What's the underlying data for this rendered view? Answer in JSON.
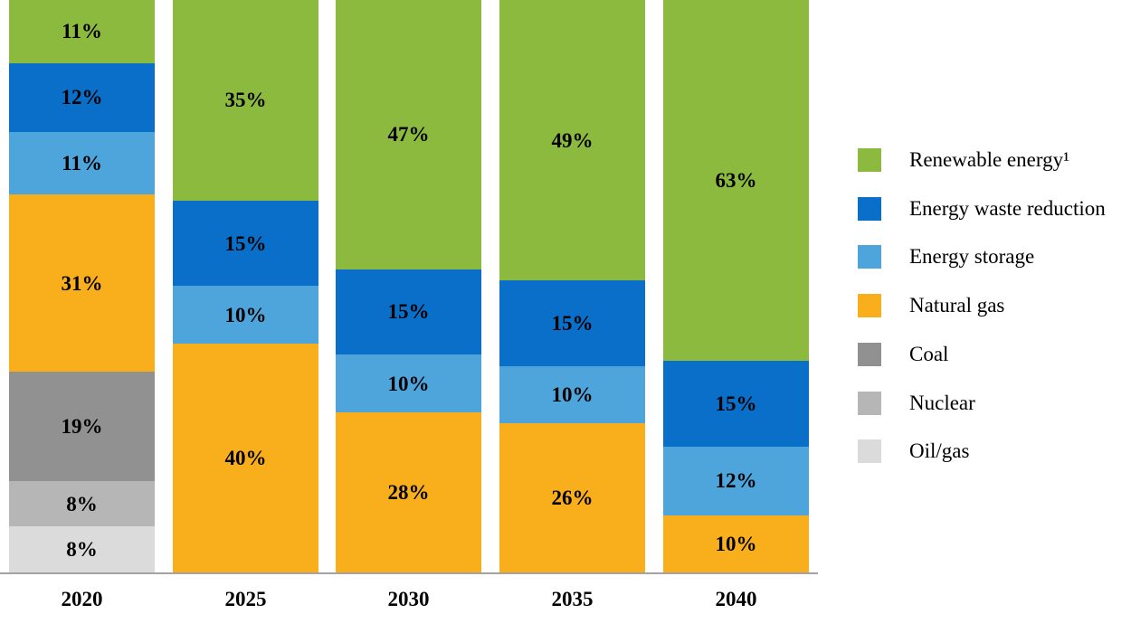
{
  "chart_data": {
    "type": "bar",
    "stacked": true,
    "title": "",
    "xlabel": "",
    "ylabel": "",
    "ylim": [
      0,
      100
    ],
    "grid": false,
    "legend_position": "right",
    "value_suffix": "%",
    "categories": [
      "2020",
      "2025",
      "2030",
      "2035",
      "2040"
    ],
    "series": [
      {
        "name": "Renewable energy¹",
        "color": "#8cba3f",
        "values": [
          11,
          35,
          47,
          49,
          63
        ]
      },
      {
        "name": "Energy waste reduction",
        "color": "#0a6fc9",
        "values": [
          12,
          15,
          15,
          15,
          15
        ]
      },
      {
        "name": "Energy storage",
        "color": "#4ea5dc",
        "values": [
          11,
          10,
          10,
          10,
          12
        ]
      },
      {
        "name": "Natural gas",
        "color": "#f9af1b",
        "values": [
          31,
          40,
          28,
          26,
          10
        ]
      },
      {
        "name": "Coal",
        "color": "#919191",
        "values": [
          19,
          0,
          0,
          0,
          0
        ]
      },
      {
        "name": "Nuclear",
        "color": "#b6b6b6",
        "values": [
          8,
          0,
          0,
          0,
          0
        ]
      },
      {
        "name": "Oil/gas",
        "color": "#dbdbdb",
        "values": [
          8,
          0,
          0,
          0,
          0
        ]
      }
    ],
    "axis_line_color": "#a3a3a3"
  }
}
